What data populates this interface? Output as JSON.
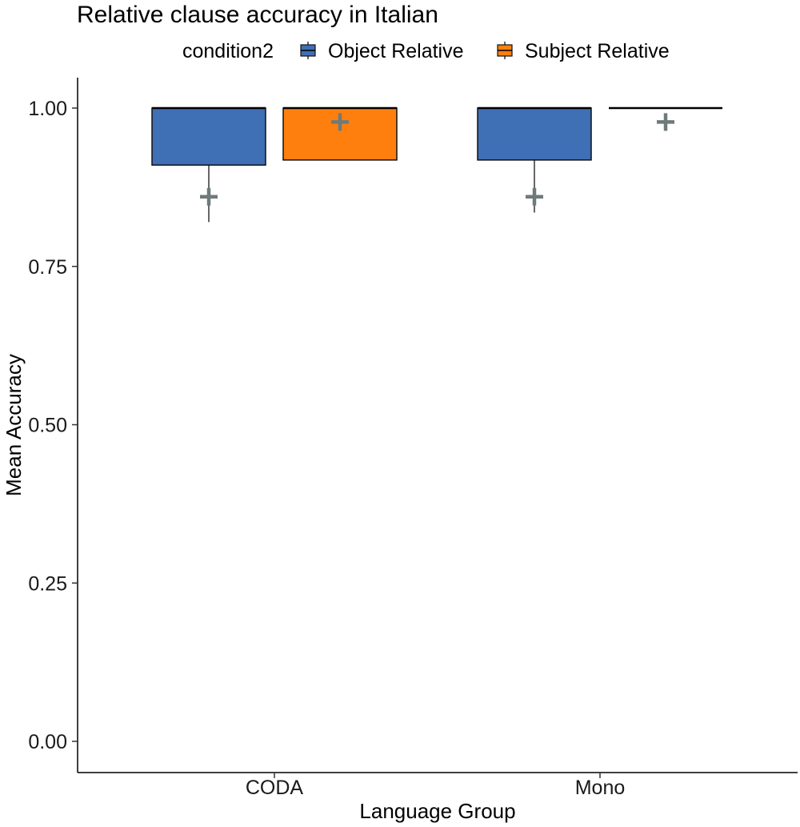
{
  "chart_data": {
    "type": "boxplot",
    "title": "Relative clause accuracy in Italian",
    "xlabel": "Language Group",
    "ylabel": "Mean Accuracy",
    "categories": [
      "CODA",
      "Mono"
    ],
    "ylim": [
      -0.03,
      1.05
    ],
    "yticks": [
      0.0,
      0.25,
      0.5,
      0.75,
      1.0
    ],
    "ytick_labels": [
      "0.00",
      "0.25",
      "0.50",
      "0.75",
      "1.00"
    ],
    "grid": false,
    "legend": {
      "title": "condition2",
      "placement": "top",
      "entries": [
        "Object Relative",
        "Subject Relative"
      ]
    },
    "series": [
      {
        "name": "Object Relative",
        "color": "#3F6FB5",
        "boxes": [
          {
            "category": "CODA",
            "min": 0.82,
            "q1": 0.91,
            "median": 1.0,
            "q3": 1.0,
            "max": 1.0,
            "mean": 0.86
          },
          {
            "category": "Mono",
            "min": 0.835,
            "q1": 0.918,
            "median": 1.0,
            "q3": 1.0,
            "max": 1.0,
            "mean": 0.86
          }
        ]
      },
      {
        "name": "Subject Relative",
        "color": "#FF7F0E",
        "boxes": [
          {
            "category": "CODA",
            "min": 0.918,
            "q1": 0.918,
            "median": 1.0,
            "q3": 1.0,
            "max": 1.0,
            "mean": 0.978
          },
          {
            "category": "Mono",
            "min": 1.0,
            "q1": 1.0,
            "median": 1.0,
            "q3": 1.0,
            "max": 1.0,
            "mean": 0.978
          }
        ]
      }
    ],
    "mean_marker": {
      "shape": "plus",
      "color": "#6E7B7A"
    }
  }
}
